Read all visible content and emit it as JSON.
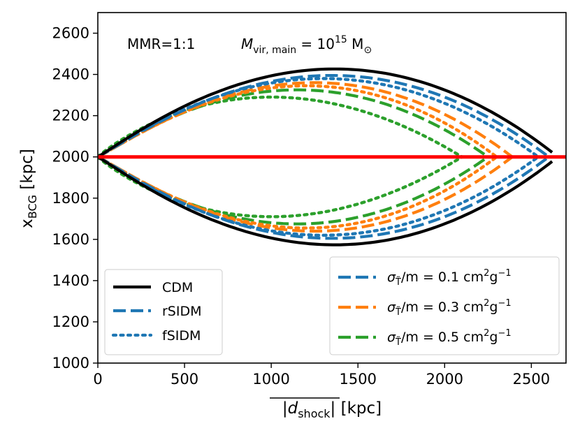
{
  "chart_data": {
    "type": "line",
    "annotation": {
      "mmr": "MMR=1:1",
      "mass_prefix": "M",
      "mass_sub": "vir, main",
      "mass_eq": " = 10",
      "mass_exp": "15",
      "mass_unit": " M",
      "mass_unit_sub": "⊙"
    },
    "xlabel": {
      "main": "|d",
      "sub": "shock",
      "end": "| [kpc]"
    },
    "ylabel": {
      "main": "x",
      "sub": "BCG",
      "end": " [kpc]"
    },
    "xlim": [
      0,
      2700
    ],
    "ylim": [
      1000,
      2700
    ],
    "xticks": [
      0,
      500,
      1000,
      1500,
      2000,
      2500
    ],
    "yticks": [
      1000,
      1200,
      1400,
      1600,
      1800,
      2000,
      2200,
      2400,
      2600
    ],
    "reference_line": {
      "y": 2000,
      "color": "#ff0000"
    },
    "legend_styles": {
      "placement": "lower-left",
      "items": [
        {
          "label": "CDM",
          "style": "solid",
          "color": "#000000"
        },
        {
          "label": "rSIDM",
          "style": "dashed",
          "color": "#1f77b4"
        },
        {
          "label": "fSIDM",
          "style": "dotted",
          "color": "#1f77b4"
        }
      ]
    },
    "legend_cross_sections": {
      "placement": "lower-right",
      "items": [
        {
          "sigma": "σ",
          "sub": "T̃",
          "rest": "/m = 0.1 cm",
          "sup1": "2",
          "g": "g",
          "sup2": "−1",
          "color": "#1f77b4"
        },
        {
          "sigma": "σ",
          "sub": "T̃",
          "rest": "/m = 0.3 cm",
          "sup1": "2",
          "g": "g",
          "sup2": "−1",
          "color": "#ff7f0e"
        },
        {
          "sigma": "σ",
          "sub": "T̃",
          "rest": "/m = 0.5 cm",
          "sup1": "2",
          "g": "g",
          "sup2": "−1",
          "color": "#2ca02c"
        }
      ]
    },
    "series": [
      {
        "model": "CDM",
        "style": "solid",
        "color": "#000000",
        "x_end": 2620,
        "y_max": 2415,
        "y_min": 1585,
        "x_peak": 1350,
        "end_offset": 22
      },
      {
        "model": "rSIDM",
        "sigma": 0.1,
        "style": "dashed",
        "color": "#1f77b4",
        "x_end": 2600,
        "y_max": 2395,
        "y_min": 1605,
        "x_peak": 1350,
        "end_offset": 0
      },
      {
        "model": "fSIDM",
        "sigma": 0.1,
        "style": "dotted",
        "color": "#1f77b4",
        "x_end": 2540,
        "y_max": 2380,
        "y_min": 1620,
        "x_peak": 1300,
        "end_offset": 0
      },
      {
        "model": "rSIDM",
        "sigma": 0.3,
        "style": "dashed",
        "color": "#ff7f0e",
        "x_end": 2390,
        "y_max": 2360,
        "y_min": 1640,
        "x_peak": 1250,
        "end_offset": 0
      },
      {
        "model": "fSIDM",
        "sigma": 0.3,
        "style": "dotted",
        "color": "#ff7f0e",
        "x_end": 2300,
        "y_max": 2345,
        "y_min": 1655,
        "x_peak": 1200,
        "end_offset": 0
      },
      {
        "model": "rSIDM",
        "sigma": 0.5,
        "style": "dashed",
        "color": "#2ca02c",
        "x_end": 2250,
        "y_max": 2325,
        "y_min": 1675,
        "x_peak": 1150,
        "end_offset": 0
      },
      {
        "model": "fSIDM",
        "sigma": 0.5,
        "style": "dotted",
        "color": "#2ca02c",
        "x_end": 2100,
        "y_max": 2290,
        "y_min": 1710,
        "x_peak": 1000,
        "end_offset": 0
      }
    ]
  }
}
